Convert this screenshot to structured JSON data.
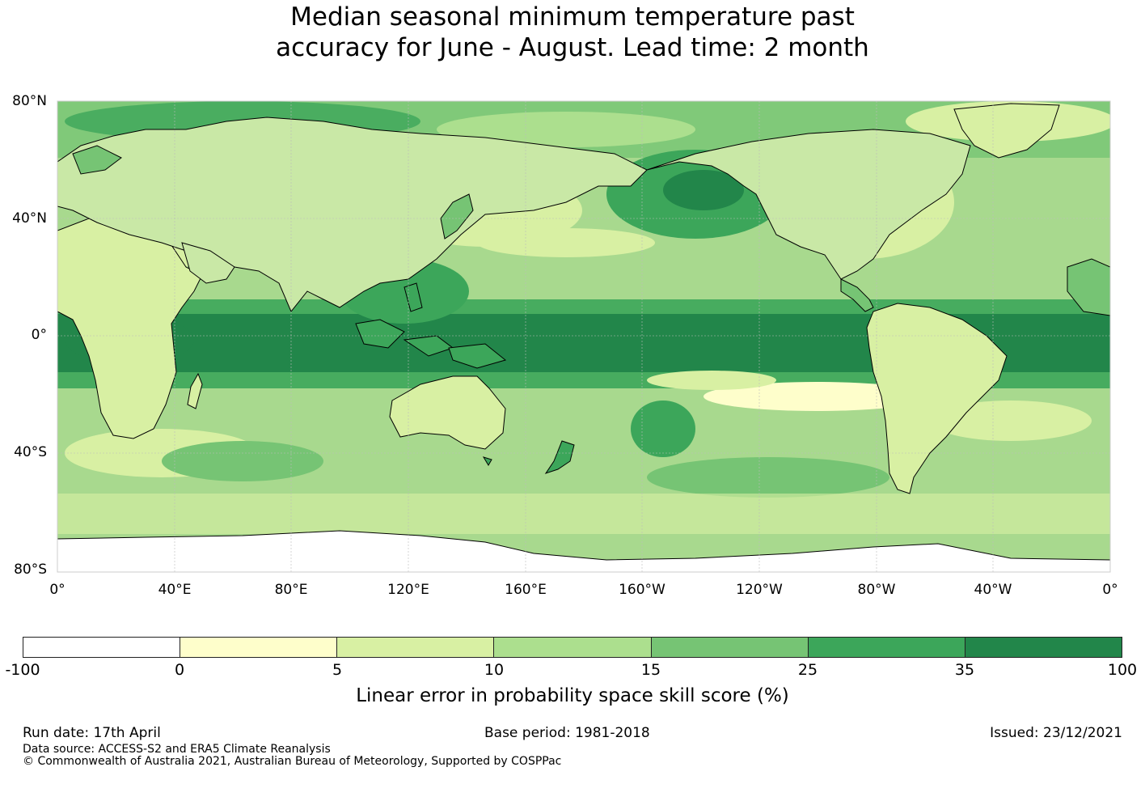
{
  "title": {
    "line1": "Median seasonal minimum temperature past",
    "line2": "accuracy for June - August. Lead time: 2 month"
  },
  "map": {
    "lat_labels": [
      "80°N",
      "40°N",
      "0°",
      "40°S",
      "80°S"
    ],
    "lon_labels": [
      "0°",
      "40°E",
      "80°E",
      "120°E",
      "160°E",
      "160°W",
      "120°W",
      "80°W",
      "40°W",
      "0°"
    ],
    "colors": {
      "ocean_base": "#a8d98e",
      "land_base": "#c9e8a6",
      "antarctica": "#ffffff",
      "coastline": "#000000",
      "gridline": "#bbbbbb"
    }
  },
  "colorbar": {
    "title": "Linear error in probability space skill score (%)",
    "ticks": [
      "-100",
      "0",
      "5",
      "10",
      "15",
      "25",
      "35",
      "100"
    ],
    "colors": [
      "#ffffff",
      "#fefecb",
      "#d8f0a3",
      "#acdf8e",
      "#76c474",
      "#3ca65a",
      "#22864a"
    ]
  },
  "footer": {
    "run_date": "Run date: 17th April",
    "base_period": "Base period: 1981-2018",
    "issued": "Issued: 23/12/2021",
    "data_source": "Data source: ACCESS-S2 and ERA5 Climate Reanalysis",
    "copyright": "© Commonwealth of Australia 2021, Australian Bureau of Meteorology, Supported by COSPPac"
  }
}
